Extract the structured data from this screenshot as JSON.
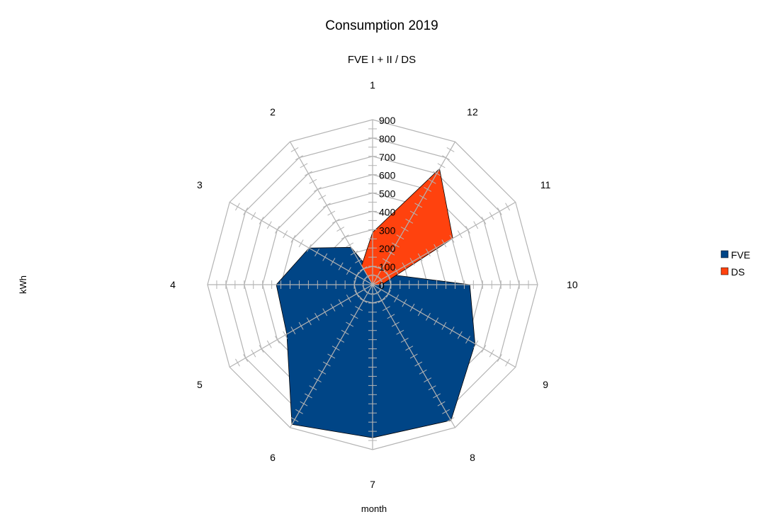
{
  "chart_data": {
    "type": "radar",
    "title": "Consumption 2019",
    "subtitle": "FVE I + II / DS",
    "xlabel": "month",
    "ylabel": "kWh",
    "categories": [
      "1",
      "2",
      "3",
      "4",
      "5",
      "6",
      "7",
      "8",
      "9",
      "10",
      "11",
      "12"
    ],
    "radial_ticks": [
      "0",
      "100",
      "200",
      "300",
      "400",
      "500",
      "600",
      "700",
      "800",
      "900"
    ],
    "rlim": [
      0,
      900
    ],
    "grid": true,
    "legend_position": "right",
    "series": [
      {
        "name": "FVE",
        "color": "#004586",
        "values": [
          60,
          235,
          400,
          525,
          540,
          880,
          835,
          855,
          645,
          530,
          110,
          60
        ]
      },
      {
        "name": "DS",
        "color": "#ff420e",
        "values": [
          285,
          120,
          0,
          0,
          0,
          0,
          0,
          0,
          0,
          50,
          505,
          730
        ]
      }
    ]
  }
}
